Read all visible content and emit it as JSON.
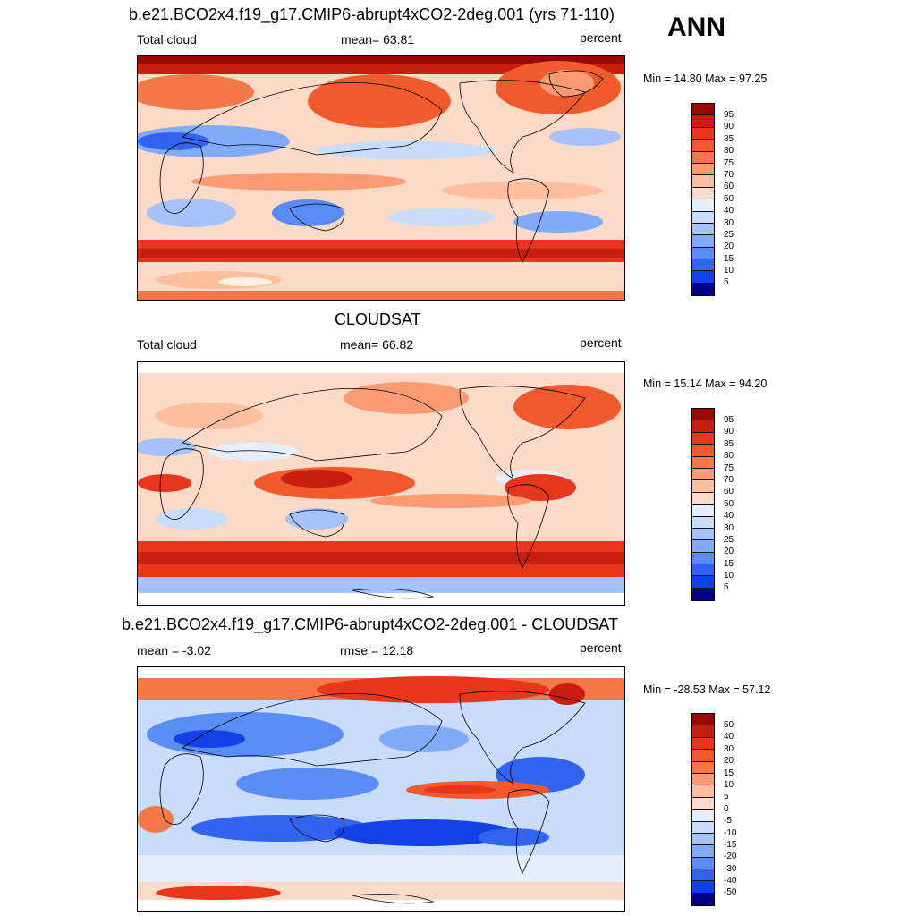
{
  "season": "ANN",
  "colors": {
    "abs_scale": [
      "#000080",
      "#0014c8",
      "#1441e6",
      "#3264f0",
      "#5a8cf5",
      "#82aaf8",
      "#a5c3fa",
      "#c8dcfc",
      "#e6eefc",
      "#fff0e6",
      "#fcdac8",
      "#fcbe9f",
      "#fa9b73",
      "#f5784b",
      "#f05a2d",
      "#e6371e",
      "#c81e0f",
      "#960a00"
    ],
    "diff_scale": [
      "#000080",
      "#0014c8",
      "#1441e6",
      "#3264f0",
      "#5a8cf5",
      "#82aaf8",
      "#a5c3fa",
      "#c8dcfc",
      "#e6eefc",
      "#fff0e6",
      "#fcdac8",
      "#fcbe9f",
      "#fa9b73",
      "#f5784b",
      "#f05a2d",
      "#e6371e",
      "#c81e0f",
      "#960a00"
    ]
  },
  "panels": [
    {
      "title": "b.e21.BCO2x4.f19_g17.CMIP6-abrupt4xCO2-2deg.001 (yrs 71-110)",
      "left_label": "Total cloud",
      "center_label": "mean=  63.81",
      "right_label": "percent",
      "minmax": "Min =  14.80 Max =  97.25",
      "colorbar_labels": [
        "95",
        "90",
        "85",
        "80",
        "75",
        "70",
        "60",
        "50",
        "40",
        "30",
        "25",
        "20",
        "15",
        "10",
        "5"
      ]
    },
    {
      "title": "CLOUDSAT",
      "left_label": "Total cloud",
      "center_label": "mean=  66.82",
      "right_label": "percent",
      "minmax": "Min =  15.14 Max =  94.20",
      "colorbar_labels": [
        "95",
        "90",
        "85",
        "80",
        "75",
        "70",
        "60",
        "50",
        "40",
        "30",
        "25",
        "20",
        "15",
        "10",
        "5"
      ]
    },
    {
      "title": "b.e21.BCO2x4.f19_g17.CMIP6-abrupt4xCO2-2deg.001 - CLOUDSAT",
      "left_label": "mean =  -3.02",
      "center_label": "rmse =  12.18",
      "right_label": "percent",
      "minmax": "Min = -28.53 Max =  57.12",
      "colorbar_labels": [
        "50",
        "40",
        "30",
        "20",
        "15",
        "10",
        "5",
        "0",
        "-5",
        "-10",
        "-15",
        "-20",
        "-30",
        "-40",
        "-50"
      ]
    }
  ]
}
